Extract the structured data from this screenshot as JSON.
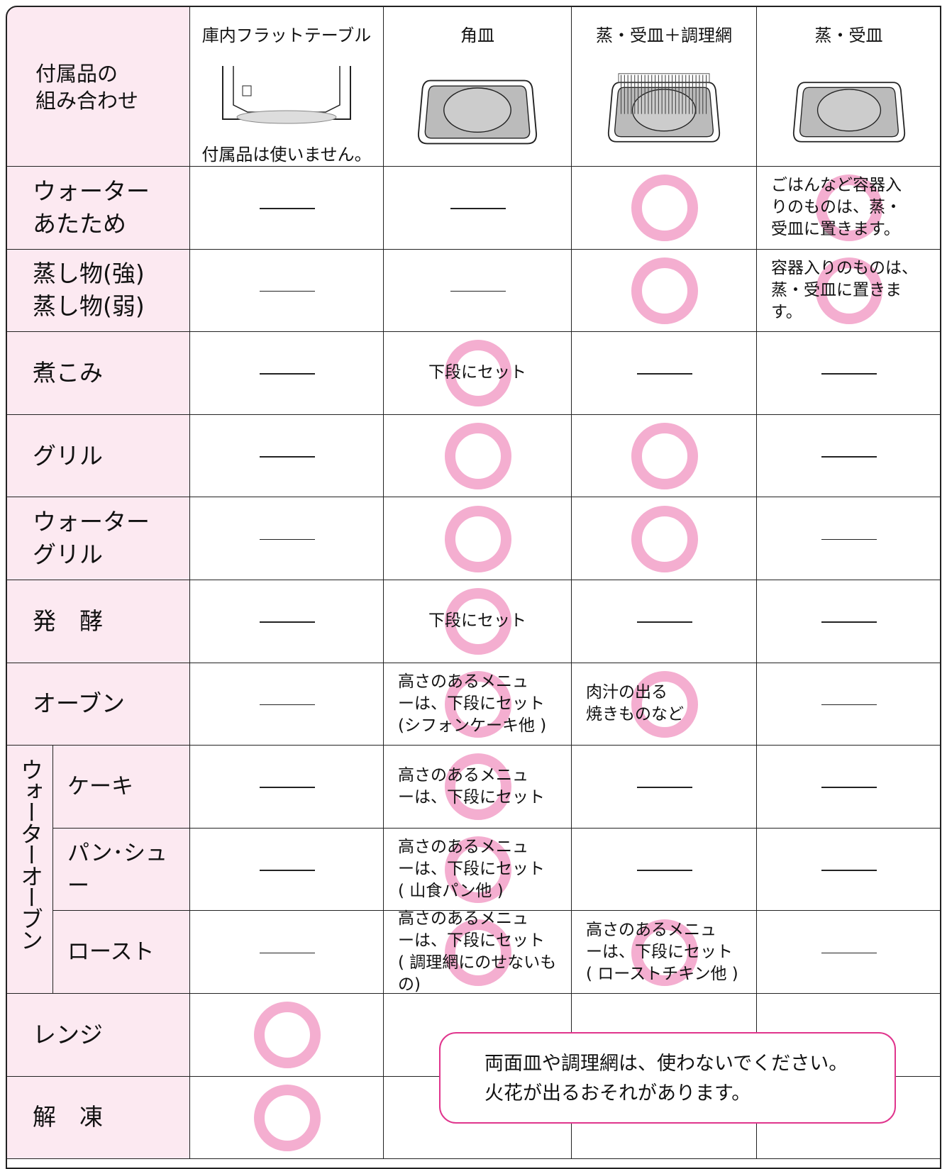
{
  "header": {
    "corner": "付属品の\n組み合わせ",
    "columns": [
      {
        "title": "庫内フラットテーブル",
        "note": "付属品は使いません。"
      },
      {
        "title": "角皿"
      },
      {
        "title": "蒸・受皿＋調理網"
      },
      {
        "title": "蒸・受皿"
      }
    ]
  },
  "rows": [
    {
      "label": "ウォーター\nあたため",
      "cells": [
        {
          "ok": false
        },
        {
          "ok": false
        },
        {
          "ok": true
        },
        {
          "ok": true,
          "text": "ごはんなど容器入\nりのものは、蒸・\n受皿に置きます。"
        }
      ]
    },
    {
      "label": "蒸し物(強)\n蒸し物(弱)",
      "cells": [
        {
          "ok": false
        },
        {
          "ok": false
        },
        {
          "ok": true
        },
        {
          "ok": true,
          "text": "容器入りのものは、\n蒸・受皿に置きま\nす。"
        }
      ]
    },
    {
      "label": "煮こみ",
      "cells": [
        {
          "ok": false
        },
        {
          "ok": true,
          "text": "下段にセット"
        },
        {
          "ok": false
        },
        {
          "ok": false
        }
      ]
    },
    {
      "label": "グリル",
      "cells": [
        {
          "ok": false
        },
        {
          "ok": true
        },
        {
          "ok": true
        },
        {
          "ok": false
        }
      ]
    },
    {
      "label": "ウォーター\nグリル",
      "cells": [
        {
          "ok": false
        },
        {
          "ok": true
        },
        {
          "ok": true
        },
        {
          "ok": false
        }
      ]
    },
    {
      "label": "発　酵",
      "cells": [
        {
          "ok": false
        },
        {
          "ok": true,
          "text": "下段にセット"
        },
        {
          "ok": false
        },
        {
          "ok": false
        }
      ]
    },
    {
      "label": "オーブン",
      "cells": [
        {
          "ok": false
        },
        {
          "ok": true,
          "text": "高さのあるメニュ\nーは、下段にセット\n(シフォンケーキ他 )"
        },
        {
          "ok": true,
          "text": "肉汁の出る\n焼きものなど"
        },
        {
          "ok": false
        }
      ]
    },
    {
      "group": "ウォーターオーブン",
      "rows": [
        {
          "label": "ケーキ",
          "cells": [
            {
              "ok": false
            },
            {
              "ok": true,
              "text": "高さのあるメニュ\nーは、下段にセット"
            },
            {
              "ok": false
            },
            {
              "ok": false
            }
          ]
        },
        {
          "label": "パン･シュー",
          "cells": [
            {
              "ok": false
            },
            {
              "ok": true,
              "text": "高さのあるメニュ\nーは、下段にセット\n( 山食パン他 )"
            },
            {
              "ok": false
            },
            {
              "ok": false
            }
          ]
        },
        {
          "label": "ロースト",
          "cells": [
            {
              "ok": false
            },
            {
              "ok": true,
              "text": "高さのあるメニュ\nーは、下段にセット\n( 調理網にのせないもの)"
            },
            {
              "ok": true,
              "text": "高さのあるメニュ\nーは、下段にセット\n( ローストチキン他 )"
            },
            {
              "ok": false
            }
          ]
        }
      ]
    },
    {
      "label": "レンジ",
      "cells": [
        {
          "ok": true
        },
        null,
        null,
        null
      ]
    },
    {
      "label": "解　凍",
      "cells": [
        {
          "ok": true
        },
        null,
        null,
        null
      ]
    }
  ],
  "note": "両面皿や調理網は、使わないでください。\n火花が出るおそれがあります。"
}
